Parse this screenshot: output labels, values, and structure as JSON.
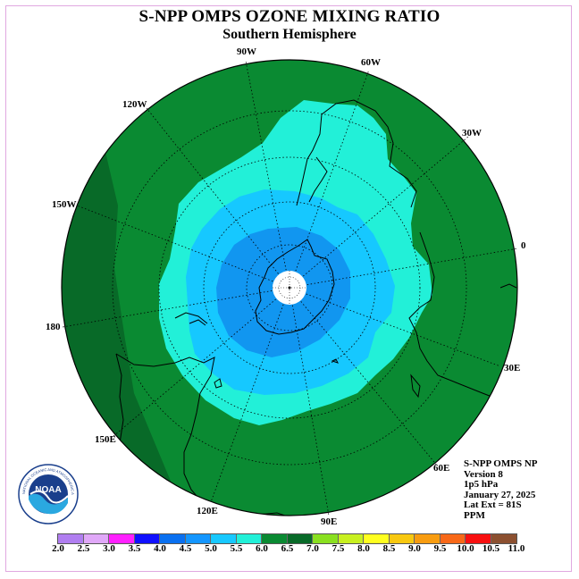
{
  "header": {
    "title": "S-NPP OMPS OZONE MIXING RATIO",
    "subtitle": "Southern Hemisphere"
  },
  "map": {
    "projection": "polar stereographic south",
    "latitude_extent": "81S",
    "longitude_labels": [
      "90W",
      "60W",
      "30W",
      "0",
      "30E",
      "60E",
      "90E",
      "120E",
      "150E",
      "180",
      "150W",
      "120W"
    ],
    "contour_bands_ppm": [
      {
        "range": "6.0-6.5",
        "where": "outer ring",
        "color": "#0a8a32"
      },
      {
        "range": "6.5-7.0",
        "where": "western edge",
        "color": "#086a28"
      },
      {
        "range": "5.5-6.0",
        "where": "mid ring",
        "color": "#22f0d8"
      },
      {
        "range": "5.0-5.5",
        "where": "inner ring",
        "color": "#16c8ff"
      },
      {
        "range": "4.5-5.0",
        "where": "polar core",
        "color": "#1196f0"
      }
    ]
  },
  "info_box": {
    "lines": [
      "S-NPP OMPS NP",
      "Version 8",
      "1p5 hPa",
      "January 27, 2025",
      "Lat Ext = 81S",
      "PPM"
    ]
  },
  "logo": {
    "text": "NOAA",
    "ring_text": "NATIONAL OCEANIC AND ATMOSPHERIC ADMINISTRATION",
    "icon": "noaa-logo"
  },
  "colorbar": {
    "colors": [
      "#b07ef0",
      "#e0a8f8",
      "#ff20ff",
      "#1010ff",
      "#0a70f0",
      "#1496ff",
      "#18c8ff",
      "#22f0d8",
      "#0a8a32",
      "#086a28",
      "#8ae020",
      "#c8f020",
      "#ffff20",
      "#f8c810",
      "#f89c10",
      "#f86818",
      "#f81010",
      "#8c5030"
    ],
    "ticks": [
      "2.0",
      "2.5",
      "3.0",
      "3.5",
      "4.0",
      "4.5",
      "5.0",
      "5.5",
      "6.0",
      "6.5",
      "7.0",
      "7.5",
      "8.0",
      "8.5",
      "9.0",
      "9.5",
      "10.0",
      "10.5",
      "11.0"
    ]
  }
}
